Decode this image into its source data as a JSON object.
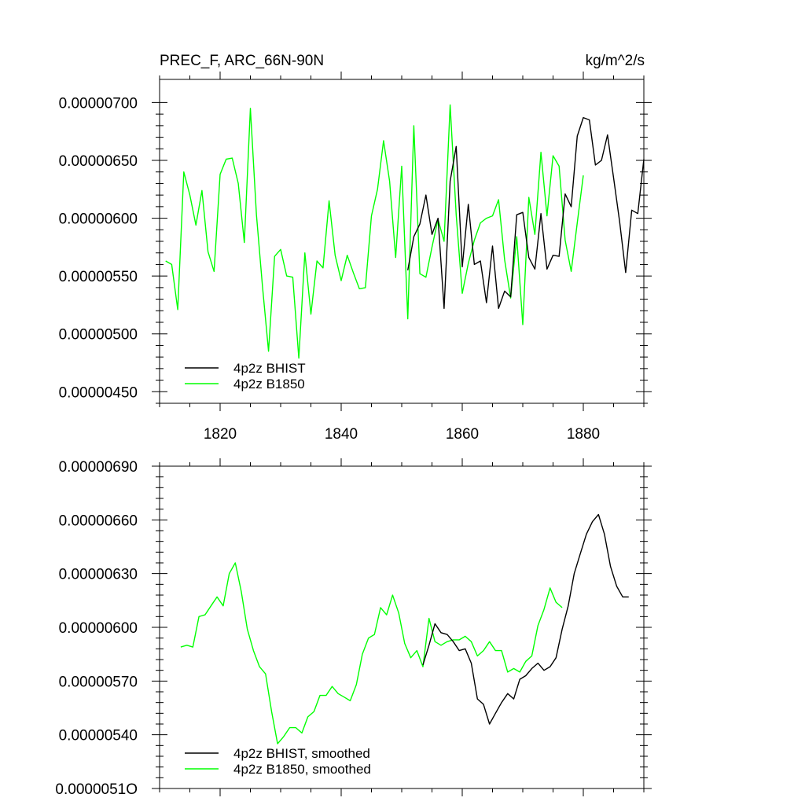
{
  "chart_data": [
    {
      "type": "line",
      "title": "PREC_F, ARC_66N-90N",
      "units": "kg/m^2/s",
      "xlim": [
        1810,
        1890
      ],
      "ylim": [
        4.4e-06,
        7.2e-06
      ],
      "x_ticks": [
        1820,
        1840,
        1860,
        1880
      ],
      "x_tick_labels": [
        "1820",
        "1840",
        "1860",
        "1880"
      ],
      "y_ticks": [
        4.5e-06,
        5e-06,
        5.5e-06,
        6e-06,
        6.5e-06,
        7e-06
      ],
      "y_tick_labels": [
        "0.00000450",
        "0.00000500",
        "0.00000550",
        "0.00000600",
        "0.00000650",
        "0.00000700"
      ],
      "legend": {
        "position": "bottom-left",
        "entries": [
          "4p2z BHIST",
          "4p2z B1850"
        ]
      },
      "series": [
        {
          "name": "4p2z BHIST",
          "color": "#000000",
          "x": [
            1851,
            1852,
            1853,
            1854,
            1855,
            1856,
            1857,
            1858,
            1859,
            1860,
            1861,
            1862,
            1863,
            1864,
            1865,
            1866,
            1867,
            1868,
            1869,
            1870,
            1871,
            1872,
            1873,
            1874,
            1875,
            1876,
            1877,
            1878,
            1879,
            1880,
            1881,
            1882,
            1883,
            1884,
            1885,
            1886,
            1887,
            1888,
            1889,
            1890
          ],
          "values": [
            5.55e-06,
            5.84e-06,
            5.95e-06,
            6.2e-06,
            5.86e-06,
            6e-06,
            5.22e-06,
            6.32e-06,
            6.62e-06,
            5.58e-06,
            6.12e-06,
            5.6e-06,
            5.63e-06,
            5.27e-06,
            5.76e-06,
            5.22e-06,
            5.37e-06,
            5.32e-06,
            6.03e-06,
            6.05e-06,
            5.66e-06,
            5.56e-06,
            6.04e-06,
            5.56e-06,
            5.68e-06,
            5.67e-06,
            6.21e-06,
            6.1e-06,
            6.71e-06,
            6.87e-06,
            6.85e-06,
            6.46e-06,
            6.5e-06,
            6.72e-06,
            6.35e-06,
            5.97e-06,
            5.53e-06,
            6.07e-06,
            6.04e-06,
            6.51e-06
          ]
        },
        {
          "name": "4p2z B1850",
          "color": "#00ff00",
          "x": [
            1811,
            1812,
            1813,
            1814,
            1815,
            1816,
            1817,
            1818,
            1819,
            1820,
            1821,
            1822,
            1823,
            1824,
            1825,
            1826,
            1827,
            1828,
            1829,
            1830,
            1831,
            1832,
            1833,
            1834,
            1835,
            1836,
            1837,
            1838,
            1839,
            1840,
            1841,
            1842,
            1843,
            1844,
            1845,
            1846,
            1847,
            1848,
            1849,
            1850,
            1851,
            1852,
            1853,
            1854,
            1855,
            1856,
            1857,
            1858,
            1859,
            1860,
            1861,
            1862,
            1863,
            1864,
            1865,
            1866,
            1867,
            1868,
            1869,
            1870,
            1871,
            1872,
            1873,
            1874,
            1875,
            1876,
            1877,
            1878,
            1879,
            1880
          ],
          "values": [
            5.63e-06,
            5.6e-06,
            5.21e-06,
            6.4e-06,
            6.2e-06,
            5.94e-06,
            6.24e-06,
            5.71e-06,
            5.54e-06,
            6.38e-06,
            6.51e-06,
            6.52e-06,
            6.3e-06,
            5.79e-06,
            6.95e-06,
            6.03e-06,
            5.41e-06,
            4.85e-06,
            5.67e-06,
            5.73e-06,
            5.5e-06,
            5.49e-06,
            4.79e-06,
            5.7e-06,
            5.17e-06,
            5.63e-06,
            5.57e-06,
            6.15e-06,
            5.68e-06,
            5.46e-06,
            5.68e-06,
            5.53e-06,
            5.39e-06,
            5.4e-06,
            6.02e-06,
            6.25e-06,
            6.67e-06,
            6.32e-06,
            5.66e-06,
            6.45e-06,
            5.13e-06,
            6.8e-06,
            5.52e-06,
            5.49e-06,
            5.75e-06,
            5.99e-06,
            5.8e-06,
            6.98e-06,
            6.03e-06,
            5.35e-06,
            5.61e-06,
            5.81e-06,
            5.96e-06,
            6e-06,
            6.02e-06,
            6.16e-06,
            5.64e-06,
            5.31e-06,
            5.84e-06,
            5.08e-06,
            6.18e-06,
            5.86e-06,
            6.57e-06,
            6.02e-06,
            6.54e-06,
            6.45e-06,
            5.81e-06,
            5.54e-06,
            5.96e-06,
            6.37e-06
          ]
        }
      ]
    },
    {
      "type": "line",
      "title": "",
      "xlim": [
        1810,
        1890
      ],
      "ylim": [
        5.1e-06,
        6.9e-06
      ],
      "x_ticks": [
        1820,
        1840,
        1860,
        1880
      ],
      "x_tick_labels": [],
      "y_ticks": [
        5.1e-06,
        5.4e-06,
        5.7e-06,
        6e-06,
        6.3e-06,
        6.6e-06,
        6.9e-06
      ],
      "y_tick_labels": [
        "0.0000051O",
        "0.00000540",
        "0.00000570",
        "0.00000600",
        "0.00000630",
        "0.00000660",
        "0.00000690"
      ],
      "legend": {
        "position": "bottom-left",
        "entries": [
          "4p2z BHIST, smoothed",
          "4p2z B1850, smoothed"
        ]
      },
      "series": [
        {
          "name": "4p2z BHIST, smoothed",
          "color": "#000000",
          "x": [
            1853.5,
            1854.5,
            1855.5,
            1856.5,
            1857.5,
            1858.5,
            1859.5,
            1860.5,
            1861.5,
            1862.5,
            1863.5,
            1864.5,
            1865.5,
            1866.5,
            1867.5,
            1868.5,
            1869.5,
            1870.5,
            1871.5,
            1872.5,
            1873.5,
            1874.5,
            1875.5,
            1876.5,
            1877.5,
            1878.5,
            1879.5,
            1880.5,
            1881.5,
            1882.5,
            1883.5,
            1884.5,
            1885.5,
            1886.5,
            1887.5
          ],
          "values": [
            5.79e-06,
            5.9e-06,
            6.02e-06,
            5.97e-06,
            5.96e-06,
            5.92e-06,
            5.87e-06,
            5.88e-06,
            5.8e-06,
            5.6e-06,
            5.57e-06,
            5.46e-06,
            5.52e-06,
            5.58e-06,
            5.63e-06,
            5.6e-06,
            5.71e-06,
            5.73e-06,
            5.77e-06,
            5.8e-06,
            5.76e-06,
            5.78e-06,
            5.83e-06,
            5.99e-06,
            6.12e-06,
            6.3e-06,
            6.41e-06,
            6.52e-06,
            6.59e-06,
            6.63e-06,
            6.52e-06,
            6.34e-06,
            6.23e-06,
            6.17e-06,
            6.17e-06
          ]
        },
        {
          "name": "4p2z B1850, smoothed",
          "color": "#00ff00",
          "x": [
            1813.5,
            1814.5,
            1815.5,
            1816.5,
            1817.5,
            1818.5,
            1819.5,
            1820.5,
            1821.5,
            1822.5,
            1823.5,
            1824.5,
            1825.5,
            1826.5,
            1827.5,
            1828.5,
            1829.5,
            1830.5,
            1831.5,
            1832.5,
            1833.5,
            1834.5,
            1835.5,
            1836.5,
            1837.5,
            1838.5,
            1839.5,
            1840.5,
            1841.5,
            1842.5,
            1843.5,
            1844.5,
            1845.5,
            1846.5,
            1847.5,
            1848.5,
            1849.5,
            1850.5,
            1851.5,
            1852.5,
            1853.5,
            1854.5,
            1855.5,
            1856.5,
            1857.5,
            1858.5,
            1859.5,
            1860.5,
            1861.5,
            1862.5,
            1863.5,
            1864.5,
            1865.5,
            1866.5,
            1867.5,
            1868.5,
            1869.5,
            1870.5,
            1871.5,
            1872.5,
            1873.5,
            1874.5,
            1875.5,
            1876.5
          ],
          "values": [
            5.89e-06,
            5.9e-06,
            5.89e-06,
            6.06e-06,
            6.07e-06,
            6.12e-06,
            6.17e-06,
            6.12e-06,
            6.3e-06,
            6.36e-06,
            6.2e-06,
            5.99e-06,
            5.87e-06,
            5.78e-06,
            5.74e-06,
            5.53e-06,
            5.35e-06,
            5.39e-06,
            5.44e-06,
            5.44e-06,
            5.41e-06,
            5.5e-06,
            5.53e-06,
            5.62e-06,
            5.62e-06,
            5.67e-06,
            5.63e-06,
            5.61e-06,
            5.59e-06,
            5.68e-06,
            5.85e-06,
            5.94e-06,
            5.96e-06,
            6.11e-06,
            6.07e-06,
            6.18e-06,
            6.08e-06,
            5.91e-06,
            5.83e-06,
            5.87e-06,
            5.78e-06,
            6.05e-06,
            5.92e-06,
            5.9e-06,
            5.92e-06,
            5.93e-06,
            5.93e-06,
            5.95e-06,
            5.92e-06,
            5.84e-06,
            5.87e-06,
            5.92e-06,
            5.87e-06,
            5.87e-06,
            5.75e-06,
            5.77e-06,
            5.75e-06,
            5.81e-06,
            5.84e-06,
            6.01e-06,
            6.1e-06,
            6.22e-06,
            6.14e-06,
            6.11e-06
          ]
        }
      ]
    }
  ]
}
